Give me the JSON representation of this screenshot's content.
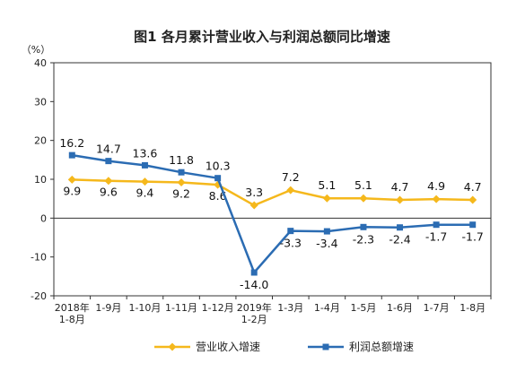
{
  "chart_data": {
    "type": "line",
    "title": "图1  各月累计营业收入与利润总额同比增速",
    "ylabel": "（%）",
    "ylim": [
      -20,
      40
    ],
    "yticks": [
      -20,
      -10,
      0,
      10,
      20,
      30,
      40
    ],
    "categories": [
      [
        "2018年",
        "1-8月"
      ],
      [
        "1-9月"
      ],
      [
        "1-10月"
      ],
      [
        "1-11月"
      ],
      [
        "1-12月"
      ],
      [
        "2019年",
        "1-2月"
      ],
      [
        "1-3月"
      ],
      [
        "1-4月"
      ],
      [
        "1-5月"
      ],
      [
        "1-6月"
      ],
      [
        "1-7月"
      ],
      [
        "1-8月"
      ]
    ],
    "series": [
      {
        "name": "营业收入增速",
        "color": "#f5b81c",
        "marker": "diamond",
        "values": [
          9.9,
          9.6,
          9.4,
          9.2,
          8.6,
          3.3,
          7.2,
          5.1,
          5.1,
          4.7,
          4.9,
          4.7
        ],
        "labels": [
          "9.9",
          "9.6",
          "9.4",
          "9.2",
          "8.6",
          "3.3",
          "7.2",
          "5.1",
          "5.1",
          "4.7",
          "4.9",
          "4.7"
        ]
      },
      {
        "name": "利润总额增速",
        "color": "#2b6cb3",
        "marker": "square",
        "values": [
          16.2,
          14.7,
          13.6,
          11.8,
          10.3,
          -14.0,
          -3.3,
          -3.4,
          -2.3,
          -2.4,
          -1.7,
          -1.7
        ],
        "labels": [
          "16.2",
          "14.7",
          "13.6",
          "11.8",
          "10.3",
          "-14.0",
          "-3.3",
          "-3.4",
          "-2.3",
          "-2.4",
          "-1.7",
          "-1.7"
        ]
      }
    ],
    "legend": "bottom",
    "grid": false
  }
}
